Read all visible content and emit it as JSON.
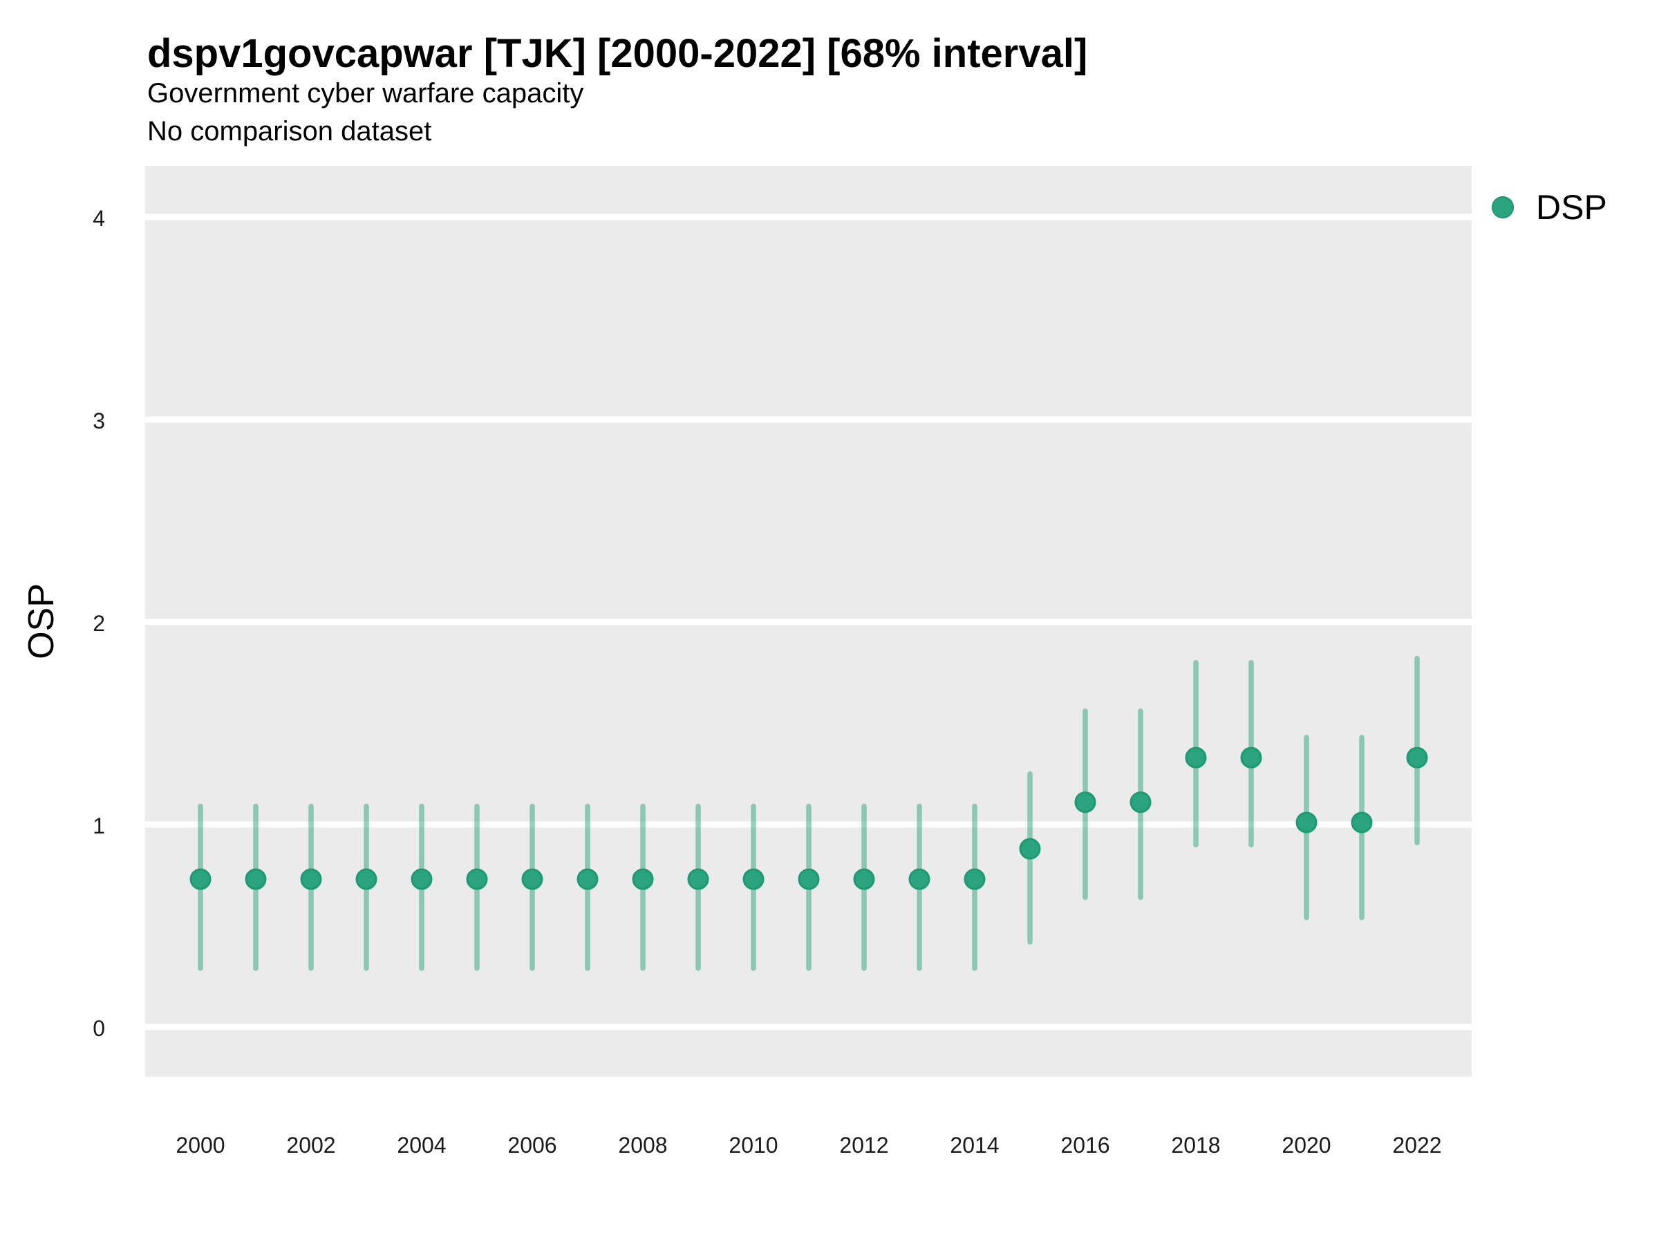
{
  "header": {
    "title": "dspv1govcapwar [TJK] [2000-2022] [68% interval]",
    "subtitle": "Government cyber warfare capacity",
    "note": "No comparison dataset"
  },
  "legend": {
    "label": "DSP",
    "position": "right"
  },
  "axes": {
    "y_label": "OSP",
    "y_ticks": [
      0,
      1,
      2,
      3,
      4
    ],
    "x_ticks": [
      2000,
      2002,
      2004,
      2006,
      2008,
      2010,
      2012,
      2014,
      2016,
      2018,
      2020,
      2022
    ]
  },
  "colors": {
    "panel_bg": "#EBEBEB",
    "gridline": "#FFFFFF",
    "point_fill": "#2BA37E",
    "point_stroke": "#1E9A71",
    "interval_rgba": "rgba(43,163,126,0.5)",
    "text": "#000000"
  },
  "chart_data": {
    "type": "pointrange",
    "title": "dspv1govcapwar [TJK] [2000-2022] [68% interval]",
    "subtitle": "Government cyber warfare capacity",
    "note": "No comparison dataset",
    "interval": "68%",
    "xlabel": "",
    "ylabel": "OSP",
    "ylim": [
      -0.25,
      4.25
    ],
    "grid": "horizontal-only",
    "legend_position": "right",
    "x": [
      2000,
      2001,
      2002,
      2003,
      2004,
      2005,
      2006,
      2007,
      2008,
      2009,
      2010,
      2011,
      2012,
      2013,
      2014,
      2015,
      2016,
      2017,
      2018,
      2019,
      2020,
      2021,
      2022
    ],
    "series": [
      {
        "name": "DSP",
        "values": [
          0.73,
          0.73,
          0.73,
          0.73,
          0.73,
          0.73,
          0.73,
          0.73,
          0.73,
          0.73,
          0.73,
          0.73,
          0.73,
          0.73,
          0.73,
          0.88,
          1.11,
          1.11,
          1.33,
          1.33,
          1.01,
          1.01,
          1.33
        ],
        "lower": [
          0.29,
          0.29,
          0.29,
          0.29,
          0.29,
          0.29,
          0.29,
          0.29,
          0.29,
          0.29,
          0.29,
          0.29,
          0.29,
          0.29,
          0.29,
          0.42,
          0.64,
          0.64,
          0.9,
          0.9,
          0.54,
          0.54,
          0.91
        ],
        "upper": [
          1.09,
          1.09,
          1.09,
          1.09,
          1.09,
          1.09,
          1.09,
          1.09,
          1.09,
          1.09,
          1.09,
          1.09,
          1.09,
          1.09,
          1.09,
          1.25,
          1.56,
          1.56,
          1.8,
          1.8,
          1.43,
          1.43,
          1.82
        ]
      }
    ]
  }
}
